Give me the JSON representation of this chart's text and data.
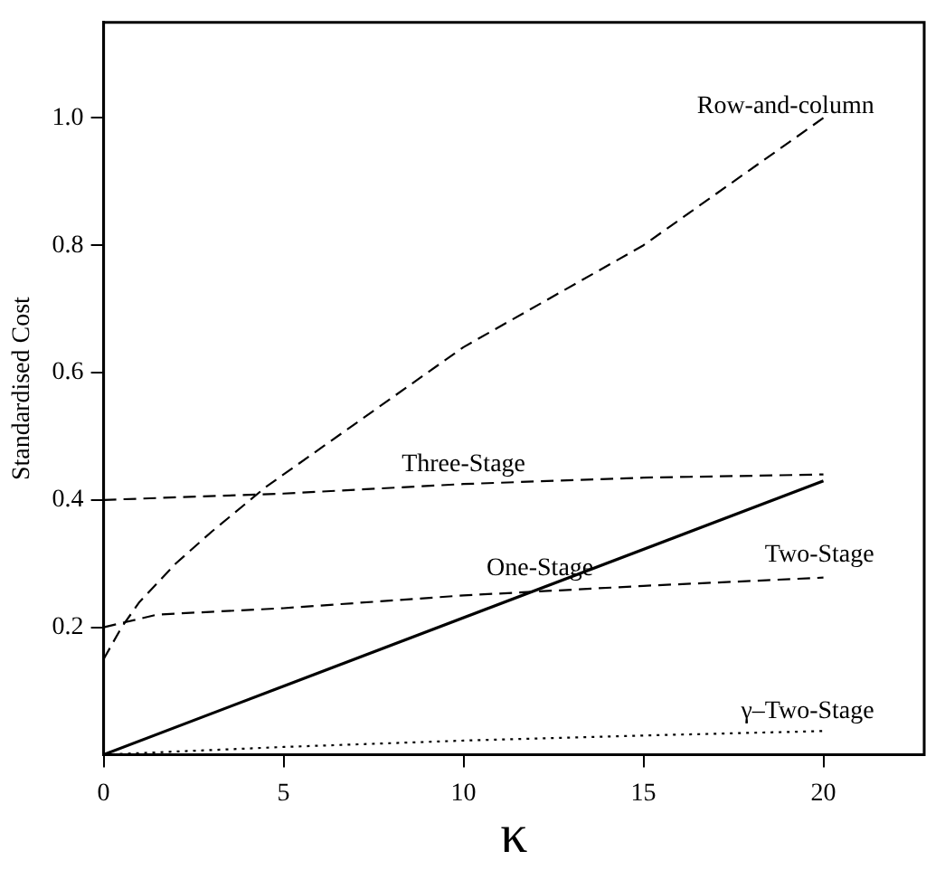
{
  "chart_data": {
    "type": "line",
    "xlabel": "κ",
    "ylabel": "Standardised Cost",
    "xlim": [
      0,
      22.8
    ],
    "ylim": [
      0,
      1.15
    ],
    "xticks": [
      0,
      5,
      10,
      15,
      20
    ],
    "yticks": [
      0.2,
      0.4,
      0.6,
      {
        "value": 1,
        "label": "1.0"
      },
      0.8
    ],
    "grid": false,
    "legend": false,
    "marker": "none",
    "series": [
      {
        "name": "Row-and-column",
        "color": "#000000",
        "line_style": "dashed",
        "x": [
          0,
          0.5,
          1,
          2,
          3,
          4.5,
          7,
          10,
          15,
          20
        ],
        "values": [
          0.15,
          0.2,
          0.24,
          0.3,
          0.35,
          0.42,
          0.52,
          0.64,
          0.8,
          1.0
        ]
      },
      {
        "name": "Three-Stage",
        "color": "#000000",
        "line_style": "dashed",
        "x": [
          0,
          5,
          10,
          15,
          20
        ],
        "values": [
          0.4,
          0.41,
          0.425,
          0.435,
          0.44
        ]
      },
      {
        "name": "One-Stage",
        "color": "#000000",
        "line_style": "solid",
        "x": [
          0,
          20
        ],
        "values": [
          0,
          0.43
        ]
      },
      {
        "name": "Two-Stage",
        "color": "#000000",
        "line_style": "dashed",
        "x": [
          0,
          1.5,
          5,
          10,
          15,
          20
        ],
        "values": [
          0.2,
          0.22,
          0.23,
          0.25,
          0.265,
          0.278
        ]
      },
      {
        "name": "γ–Two-Stage",
        "color": "#000000",
        "line_style": "dotted",
        "x": [
          0,
          5,
          10,
          15,
          20
        ],
        "values": [
          0,
          0.012,
          0.022,
          0.03,
          0.037
        ]
      }
    ]
  }
}
